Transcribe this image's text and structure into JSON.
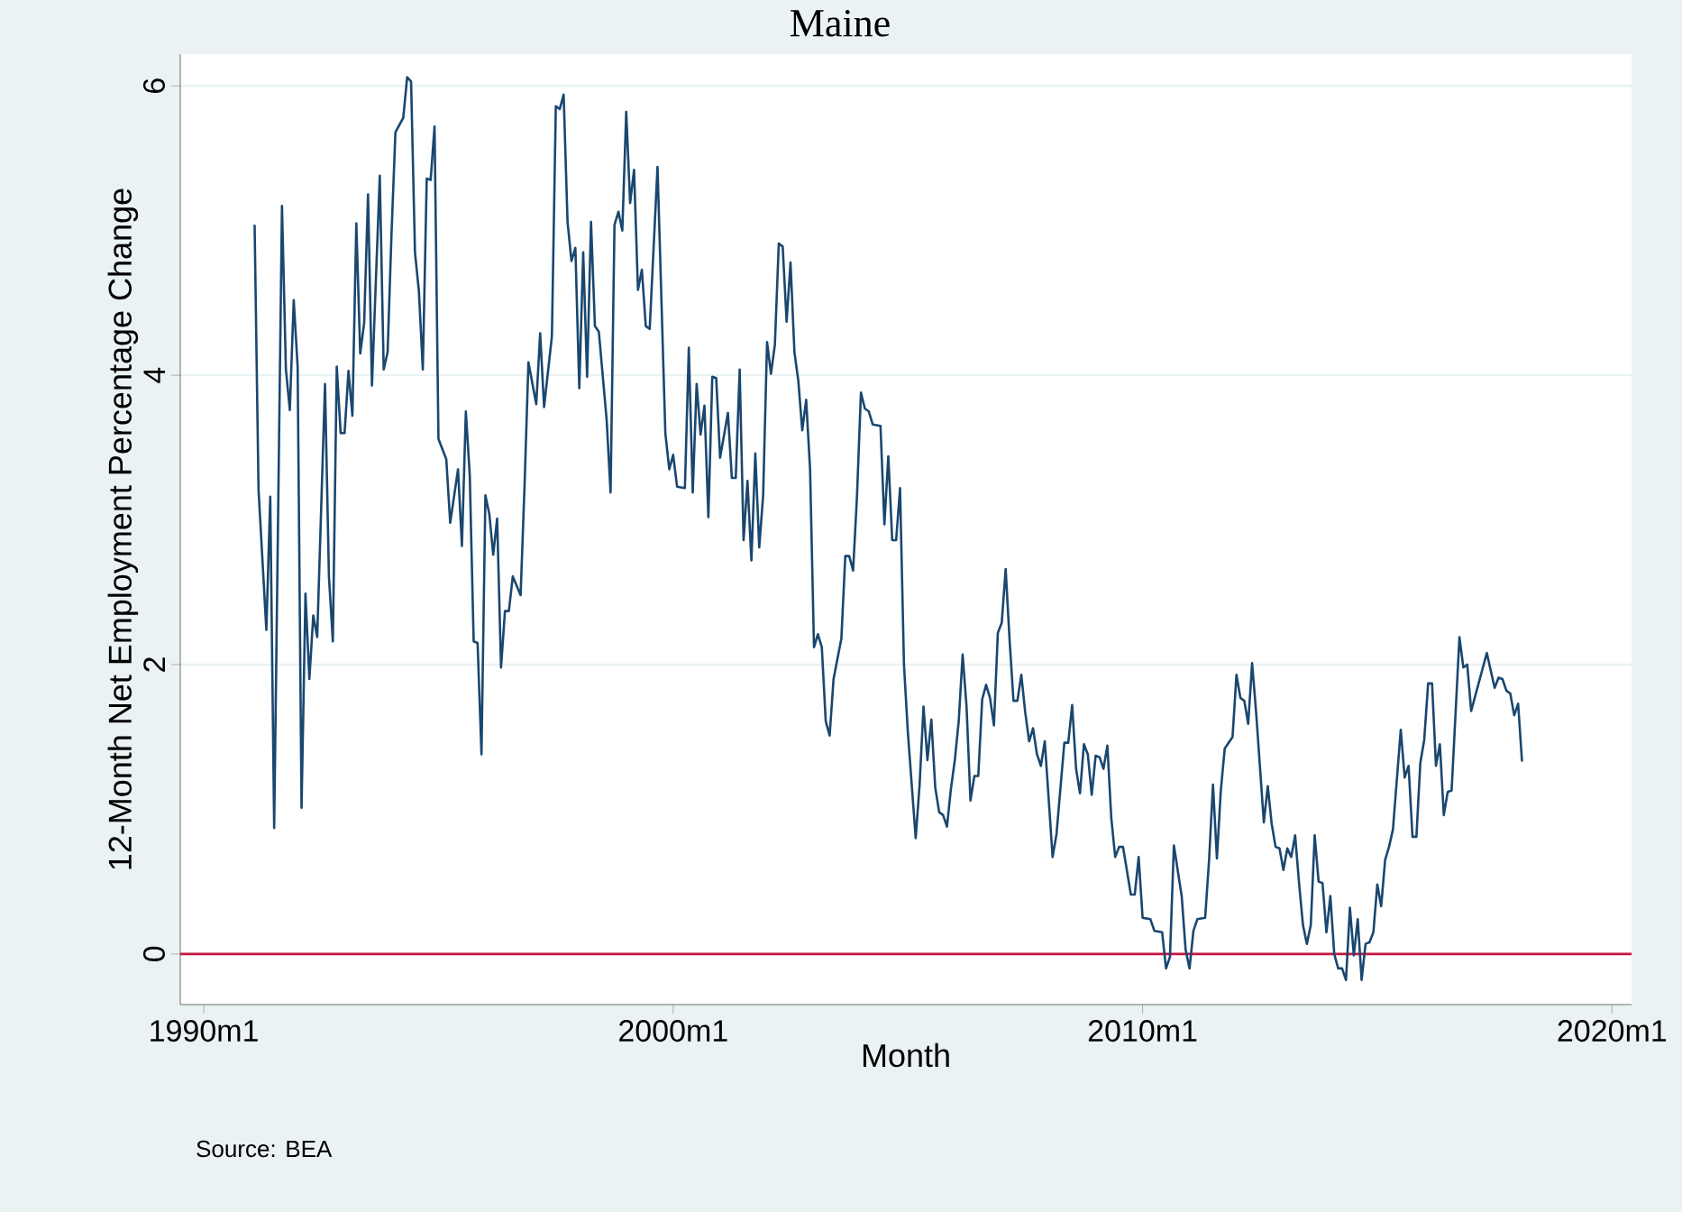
{
  "chart_data": {
    "type": "line",
    "title": "Maine",
    "xlabel": "Month",
    "ylabel": "12-Month Net Employment Percentage Change",
    "annotations": [
      "Source: BEA"
    ],
    "xlim": [
      "1989-07",
      "2020-06"
    ],
    "ylim": [
      -0.35,
      6.22
    ],
    "xticks": [
      {
        "value": "1990-01",
        "label": "1990m1"
      },
      {
        "value": "2000-01",
        "label": "2000m1"
      },
      {
        "value": "2010-01",
        "label": "2010m1"
      },
      {
        "value": "2020-01",
        "label": "2020m1"
      }
    ],
    "yticks": [
      0,
      2,
      4,
      6
    ],
    "grid": "y",
    "marker": "none",
    "line_style": "solid",
    "ref_lines": [
      {
        "axis": "y",
        "value": 0,
        "color": "#c8163e"
      }
    ],
    "series": [
      {
        "color": "#1a476f",
        "x": [
          "1991-02",
          "1991-03",
          "1991-05",
          "1991-06",
          "1991-07",
          "1991-09",
          "1991-10",
          "1991-11",
          "1991-12",
          "1992-01",
          "1992-02",
          "1992-03",
          "1992-04",
          "1992-05",
          "1992-06",
          "1992-08",
          "1992-09",
          "1992-10",
          "1992-11",
          "1992-12",
          "1993-01",
          "1993-02",
          "1993-03",
          "1993-04",
          "1993-05",
          "1993-06",
          "1993-07",
          "1993-08",
          "1993-10",
          "1993-11",
          "1993-12",
          "1994-01",
          "1994-02",
          "1994-04",
          "1994-05",
          "1994-06",
          "1994-07",
          "1994-08",
          "1994-09",
          "1994-10",
          "1994-11",
          "1994-12",
          "1995-01",
          "1995-03",
          "1995-04",
          "1995-06",
          "1995-07",
          "1995-08",
          "1995-09",
          "1995-10",
          "1995-11",
          "1995-12",
          "1996-01",
          "1996-02",
          "1996-03",
          "1996-04",
          "1996-05",
          "1996-06",
          "1996-07",
          "1996-08",
          "1996-10",
          "1996-11",
          "1996-12",
          "1997-02",
          "1997-03",
          "1997-04",
          "1997-06",
          "1997-07",
          "1997-08",
          "1997-09",
          "1997-10",
          "1997-11",
          "1997-12",
          "1998-01",
          "1998-02",
          "1998-03",
          "1998-04",
          "1998-05",
          "1998-06",
          "1998-08",
          "1998-09",
          "1998-10",
          "1998-11",
          "1998-12",
          "1999-01",
          "1999-02",
          "1999-03",
          "1999-04",
          "1999-05",
          "1999-06",
          "1999-07",
          "1999-09",
          "1999-11",
          "1999-12",
          "2000-01",
          "2000-02",
          "2000-04",
          "2000-05",
          "2000-06",
          "2000-07",
          "2000-08",
          "2000-09",
          "2000-10",
          "2000-11",
          "2000-12",
          "2001-01",
          "2001-03",
          "2001-04",
          "2001-05",
          "2001-06",
          "2001-07",
          "2001-08",
          "2001-09",
          "2001-10",
          "2001-11",
          "2001-12",
          "2002-01",
          "2002-02",
          "2002-03",
          "2002-04",
          "2002-05",
          "2002-06",
          "2002-07",
          "2002-08",
          "2002-09",
          "2002-10",
          "2002-11",
          "2002-12",
          "2003-01",
          "2003-02",
          "2003-03",
          "2003-04",
          "2003-05",
          "2003-06",
          "2003-08",
          "2003-09",
          "2003-10",
          "2003-11",
          "2003-12",
          "2004-01",
          "2004-02",
          "2004-03",
          "2004-04",
          "2004-06",
          "2004-07",
          "2004-08",
          "2004-09",
          "2004-10",
          "2004-11",
          "2004-12",
          "2005-01",
          "2005-03",
          "2005-04",
          "2005-05",
          "2005-06",
          "2005-07",
          "2005-08",
          "2005-09",
          "2005-10",
          "2005-11",
          "2005-12",
          "2006-01",
          "2006-02",
          "2006-03",
          "2006-04",
          "2006-05",
          "2006-06",
          "2006-07",
          "2006-08",
          "2006-09",
          "2006-10",
          "2006-11",
          "2006-12",
          "2007-01",
          "2007-02",
          "2007-03",
          "2007-04",
          "2007-05",
          "2007-06",
          "2007-07",
          "2007-08",
          "2007-09",
          "2007-10",
          "2007-11",
          "2007-12",
          "2008-02",
          "2008-03",
          "2008-05",
          "2008-06",
          "2008-07",
          "2008-08",
          "2008-09",
          "2008-10",
          "2008-11",
          "2008-12",
          "2009-01",
          "2009-02",
          "2009-03",
          "2009-04",
          "2009-05",
          "2009-06",
          "2009-07",
          "2009-08",
          "2009-10",
          "2009-11",
          "2009-12",
          "2010-01",
          "2010-03",
          "2010-04",
          "2010-06",
          "2010-07",
          "2010-08",
          "2010-09",
          "2010-11",
          "2010-12",
          "2011-01",
          "2011-02",
          "2011-03",
          "2011-05",
          "2011-06",
          "2011-07",
          "2011-08",
          "2011-09",
          "2011-10",
          "2011-12",
          "2012-01",
          "2012-02",
          "2012-03",
          "2012-04",
          "2012-05",
          "2012-06",
          "2012-08",
          "2012-09",
          "2012-10",
          "2012-11",
          "2012-12",
          "2013-01",
          "2013-02",
          "2013-03",
          "2013-04",
          "2013-05",
          "2013-06",
          "2013-07",
          "2013-08",
          "2013-09",
          "2013-10",
          "2013-11",
          "2013-12",
          "2014-01",
          "2014-02",
          "2014-03",
          "2014-04",
          "2014-05",
          "2014-06",
          "2014-07",
          "2014-08",
          "2014-09",
          "2014-10",
          "2014-11",
          "2014-12",
          "2015-01",
          "2015-02",
          "2015-03",
          "2015-04",
          "2015-05",
          "2015-07",
          "2015-08",
          "2015-09",
          "2015-10",
          "2015-11",
          "2015-12",
          "2016-01",
          "2016-02",
          "2016-03",
          "2016-04",
          "2016-05",
          "2016-06",
          "2016-07",
          "2016-08",
          "2016-10",
          "2016-11",
          "2016-12",
          "2017-01",
          "2017-05",
          "2017-07",
          "2017-08",
          "2017-09",
          "2017-10",
          "2017-11",
          "2017-12",
          "2018-01",
          "2018-02"
        ],
        "values": [
          5.04,
          3.21,
          2.24,
          3.16,
          0.87,
          5.17,
          4.04,
          3.76,
          4.52,
          4.06,
          1.01,
          2.49,
          1.9,
          2.34,
          2.19,
          3.94,
          2.61,
          2.16,
          4.06,
          3.6,
          3.6,
          4.03,
          3.72,
          5.05,
          4.15,
          4.36,
          5.25,
          3.93,
          5.38,
          4.04,
          4.16,
          4.98,
          5.68,
          5.78,
          6.06,
          6.03,
          4.85,
          4.58,
          4.04,
          5.36,
          5.35,
          5.72,
          3.56,
          3.42,
          2.98,
          3.35,
          2.82,
          3.75,
          3.31,
          2.16,
          2.15,
          1.38,
          3.17,
          3.04,
          2.76,
          3.01,
          1.98,
          2.37,
          2.37,
          2.61,
          2.48,
          3.23,
          4.09,
          3.8,
          4.29,
          3.78,
          4.27,
          5.86,
          5.84,
          5.94,
          5.06,
          4.79,
          4.88,
          3.91,
          4.85,
          3.99,
          5.06,
          4.34,
          4.3,
          3.69,
          3.19,
          5.04,
          5.13,
          5.0,
          5.82,
          5.19,
          5.42,
          4.59,
          4.73,
          4.34,
          4.32,
          5.44,
          3.6,
          3.35,
          3.45,
          3.23,
          3.22,
          4.19,
          3.19,
          3.94,
          3.59,
          3.79,
          3.02,
          3.99,
          3.98,
          3.43,
          3.74,
          3.29,
          3.29,
          4.04,
          2.86,
          3.27,
          2.72,
          3.46,
          2.81,
          3.17,
          4.23,
          4.01,
          4.21,
          4.91,
          4.89,
          4.37,
          4.78,
          4.16,
          3.96,
          3.62,
          3.83,
          3.35,
          2.12,
          2.21,
          2.12,
          1.61,
          1.51,
          1.9,
          2.18,
          2.75,
          2.75,
          2.65,
          3.17,
          3.88,
          3.77,
          3.75,
          3.66,
          3.65,
          2.97,
          3.44,
          2.86,
          2.86,
          3.22,
          2.0,
          1.53,
          0.8,
          1.17,
          1.71,
          1.34,
          1.62,
          1.15,
          0.98,
          0.96,
          0.88,
          1.14,
          1.34,
          1.61,
          2.07,
          1.71,
          1.06,
          1.23,
          1.23,
          1.76,
          1.86,
          1.77,
          1.58,
          2.22,
          2.29,
          2.66,
          2.17,
          1.75,
          1.75,
          1.93,
          1.67,
          1.47,
          1.56,
          1.38,
          1.3,
          1.47,
          0.67,
          0.83,
          1.46,
          1.46,
          1.72,
          1.28,
          1.11,
          1.45,
          1.38,
          1.1,
          1.37,
          1.36,
          1.28,
          1.44,
          0.94,
          0.67,
          0.74,
          0.74,
          0.41,
          0.41,
          0.67,
          0.25,
          0.24,
          0.16,
          0.15,
          -0.1,
          -0.02,
          0.75,
          0.4,
          0.03,
          -0.1,
          0.16,
          0.24,
          0.25,
          0.65,
          1.17,
          0.66,
          1.13,
          1.42,
          1.5,
          1.93,
          1.77,
          1.75,
          1.59,
          2.01,
          1.68,
          0.91,
          1.16,
          0.9,
          0.74,
          0.73,
          0.58,
          0.73,
          0.67,
          0.82,
          0.49,
          0.2,
          0.07,
          0.2,
          0.82,
          0.5,
          0.49,
          0.15,
          0.4,
          0.0,
          -0.1,
          -0.1,
          -0.18,
          0.32,
          -0.01,
          0.24,
          -0.18,
          0.07,
          0.08,
          0.15,
          0.48,
          0.33,
          0.65,
          0.74,
          0.86,
          1.55,
          1.22,
          1.3,
          0.81,
          0.81,
          1.32,
          1.48,
          1.87,
          1.87,
          1.3,
          1.45,
          0.96,
          1.12,
          1.13,
          2.19,
          1.98,
          2.0,
          1.68,
          2.08,
          1.84,
          1.91,
          1.9,
          1.82,
          1.8,
          1.65,
          1.73,
          1.33
        ]
      }
    ]
  }
}
